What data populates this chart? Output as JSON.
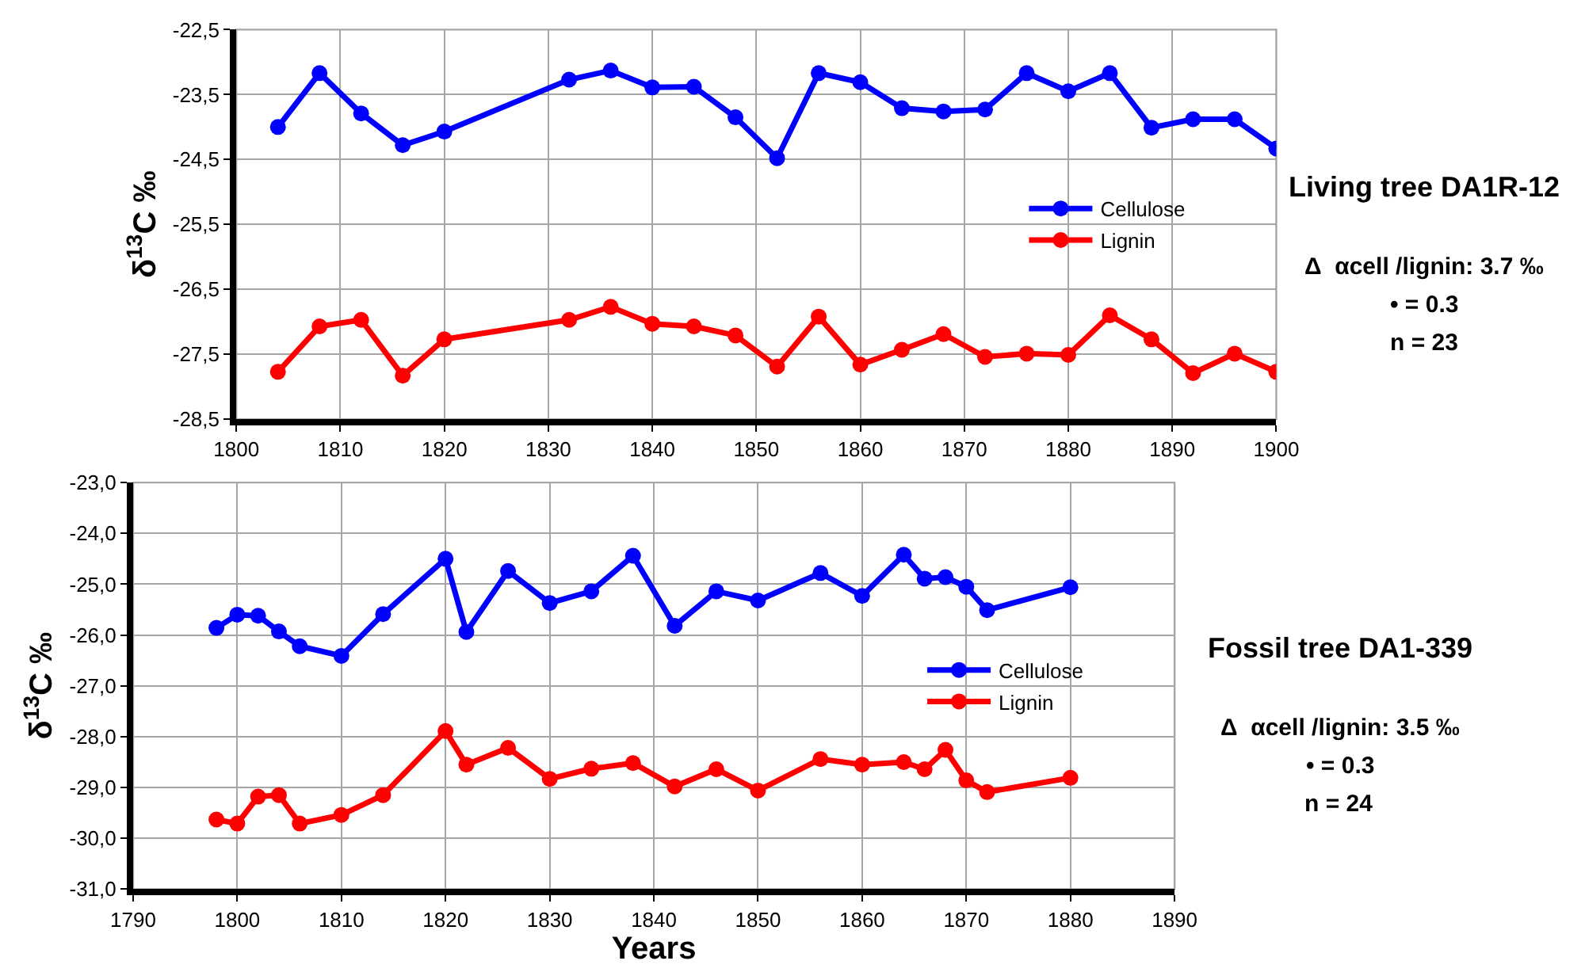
{
  "chart_data": [
    {
      "type": "line",
      "ylabel": "δ$^{13}$C ‰",
      "x": [
        1804,
        1808,
        1812,
        1816,
        1820,
        1832,
        1836,
        1840,
        1844,
        1848,
        1852,
        1856,
        1860,
        1864,
        1868,
        1872,
        1876,
        1880,
        1884,
        1888,
        1892,
        1896,
        1900
      ],
      "series": [
        {
          "name": "Cellulose",
          "color": "#0000ff",
          "values": [
            -24.0,
            -23.17,
            -23.79,
            -24.28,
            -24.07,
            -23.27,
            -23.13,
            -23.39,
            -23.38,
            -23.85,
            -24.48,
            -23.17,
            -23.31,
            -23.71,
            -23.76,
            -23.73,
            -23.17,
            -23.45,
            -23.17,
            -24.01,
            -23.88,
            -23.88,
            -24.33
          ]
        },
        {
          "name": "Lignin",
          "color": "#ff0000",
          "values": [
            -27.77,
            -27.07,
            -26.97,
            -27.83,
            -27.27,
            -26.97,
            -26.77,
            -27.03,
            -27.07,
            -27.21,
            -27.69,
            -26.92,
            -27.66,
            -27.43,
            -27.19,
            -27.54,
            -27.49,
            -27.51,
            -26.9,
            -27.27,
            -27.79,
            -27.49,
            -27.77
          ]
        }
      ],
      "xlim": [
        1800,
        1900
      ],
      "xticks": [
        1800,
        1810,
        1820,
        1830,
        1840,
        1850,
        1860,
        1870,
        1880,
        1890,
        1900
      ],
      "ylim": [
        -28.5,
        -22.5
      ],
      "yticks": [
        {
          "value": -28.5,
          "label": "-28,5"
        },
        {
          "value": -27.5,
          "label": "-27,5"
        },
        {
          "value": -26.5,
          "label": "-26,5"
        },
        {
          "value": -25.5,
          "label": "-25,5"
        },
        {
          "value": -24.5,
          "label": "-24,5"
        },
        {
          "value": -23.5,
          "label": "-23,5"
        },
        {
          "value": -22.5,
          "label": "-22,5"
        }
      ],
      "grid": true,
      "legend": "right",
      "marker": "circle",
      "line_style": "solid",
      "annotations": [
        "Living tree DA1R-12",
        "Δ  αcell /lignin: 3.7 ‰",
        "• = 0.3",
        "n = 23"
      ]
    },
    {
      "type": "line",
      "ylabel": "δ$^{13}$C ‰",
      "xlabel": "Years",
      "x": [
        1798,
        1800,
        1802,
        1804,
        1806,
        1810,
        1814,
        1820,
        1822,
        1826,
        1830,
        1834,
        1838,
        1842,
        1846,
        1850,
        1856,
        1860,
        1864,
        1866,
        1868,
        1870,
        1872,
        1880
      ],
      "series": [
        {
          "name": "Cellulose",
          "color": "#0000ff",
          "values": [
            -25.86,
            -25.6,
            -25.62,
            -25.93,
            -26.22,
            -26.41,
            -25.59,
            -24.5,
            -25.94,
            -24.74,
            -25.37,
            -25.14,
            -24.44,
            -25.82,
            -25.14,
            -25.32,
            -24.78,
            -25.23,
            -24.42,
            -24.89,
            -24.86,
            -25.05,
            -25.51,
            -25.06
          ]
        },
        {
          "name": "Lignin",
          "color": "#ff0000",
          "values": [
            -29.63,
            -29.71,
            -29.18,
            -29.15,
            -29.71,
            -29.54,
            -29.15,
            -27.89,
            -28.55,
            -28.22,
            -28.83,
            -28.63,
            -28.52,
            -28.98,
            -28.64,
            -29.06,
            -28.44,
            -28.55,
            -28.5,
            -28.64,
            -28.26,
            -28.86,
            -29.09,
            -28.81
          ]
        }
      ],
      "xlim": [
        1790,
        1890
      ],
      "xticks": [
        1790,
        1800,
        1810,
        1820,
        1830,
        1840,
        1850,
        1860,
        1870,
        1880,
        1890
      ],
      "ylim": [
        -31,
        -23
      ],
      "yticks": [
        {
          "value": -31,
          "label": "-31,0"
        },
        {
          "value": -30,
          "label": "-30,0"
        },
        {
          "value": -29,
          "label": "-29,0"
        },
        {
          "value": -28,
          "label": "-28,0"
        },
        {
          "value": -27,
          "label": "-27,0"
        },
        {
          "value": -26,
          "label": "-26,0"
        },
        {
          "value": -25,
          "label": "-25,0"
        },
        {
          "value": -24,
          "label": "-24,0"
        },
        {
          "value": -23,
          "label": "-23,0"
        }
      ],
      "grid": true,
      "legend": "right",
      "marker": "circle",
      "line_style": "solid",
      "annotations": [
        "Fossil tree DA1-339",
        "Δ  αcell /lignin: 3.5 ‰",
        "• = 0.3",
        "n = 24"
      ]
    }
  ]
}
